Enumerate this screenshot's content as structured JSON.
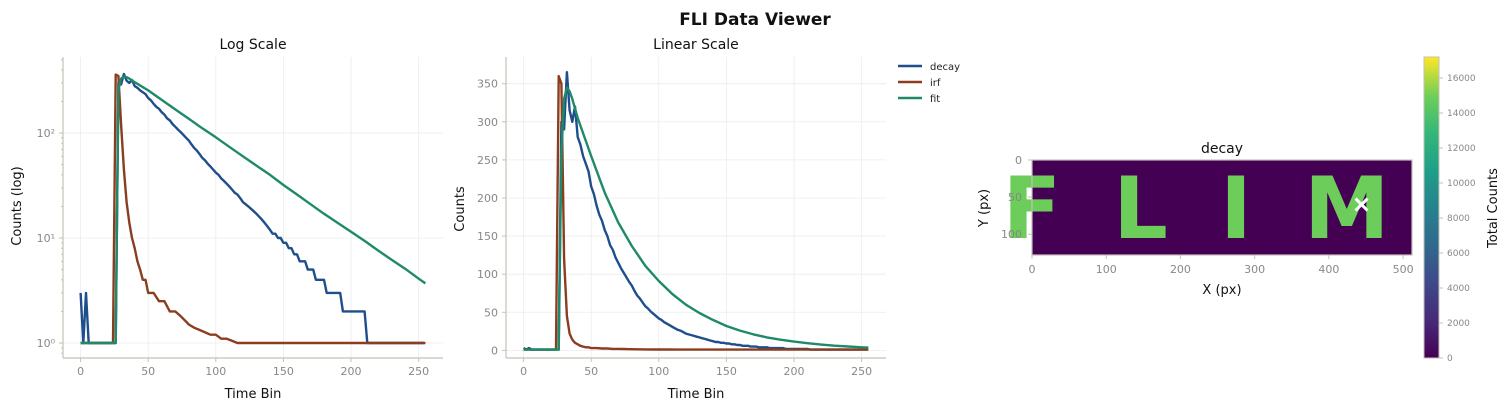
{
  "window": {
    "suptitle": "FLI Data Viewer"
  },
  "colors": {
    "decay": "#1f4e8c",
    "irf": "#8b3e1f",
    "fit": "#1e8a6a",
    "image_bg": "#440154",
    "image_letters": "#6ccd5a",
    "marker": "#ffffff"
  },
  "chart_data": [
    {
      "type": "line",
      "title": "Log Scale",
      "xlabel": "Time Bin",
      "ylabel": "Counts (log)",
      "xlim": [
        -13,
        268
      ],
      "ylim": [
        0.72,
        530
      ],
      "yscale": "log",
      "grid": true,
      "xticks": [
        0,
        50,
        100,
        150,
        200,
        250
      ],
      "yticks": [
        1,
        10,
        100
      ],
      "ytick_labels": [
        "10⁰",
        "10¹",
        "10²"
      ]
    },
    {
      "type": "line",
      "title": "Linear Scale",
      "xlabel": "Time Bin",
      "ylabel": "Counts",
      "xlim": [
        -13,
        268
      ],
      "ylim": [
        -10,
        385
      ],
      "yscale": "linear",
      "grid": true,
      "xticks": [
        0,
        50,
        100,
        150,
        200,
        250
      ],
      "yticks": [
        0,
        50,
        100,
        150,
        200,
        250,
        300,
        350
      ],
      "legend": {
        "placement": "upper-right-outside",
        "entries": [
          "decay",
          "irf",
          "fit"
        ]
      }
    },
    {
      "type": "heatmap",
      "title": "decay",
      "xlabel": "X (px)",
      "ylabel": "Y (px)",
      "xlim": [
        0,
        512
      ],
      "ylim": [
        128,
        0
      ],
      "xticks": [
        0,
        100,
        200,
        300,
        400,
        500
      ],
      "yticks": [
        0,
        50,
        100
      ],
      "image_text": "FLIM",
      "marker": {
        "symbol": "x",
        "x": 444,
        "y": 60
      },
      "colorbar": {
        "label": "Total Counts",
        "min": 0,
        "max": 17200,
        "ticks": [
          0,
          2000,
          4000,
          6000,
          8000,
          10000,
          12000,
          14000,
          16000
        ],
        "colormap": "viridis"
      }
    }
  ],
  "series": {
    "decay": {
      "name": "decay",
      "x": [
        0,
        2,
        4,
        6,
        8,
        10,
        12,
        14,
        16,
        18,
        20,
        22,
        24,
        26,
        28,
        30,
        32,
        34,
        36,
        38,
        40,
        42,
        44,
        46,
        48,
        50,
        52,
        54,
        56,
        58,
        60,
        62,
        64,
        66,
        68,
        70,
        72,
        74,
        76,
        78,
        80,
        82,
        84,
        86,
        88,
        90,
        92,
        94,
        96,
        98,
        100,
        102,
        104,
        106,
        108,
        110,
        112,
        114,
        116,
        118,
        120,
        122,
        124,
        126,
        128,
        130,
        132,
        134,
        136,
        138,
        140,
        142,
        144,
        146,
        148,
        150,
        152,
        154,
        156,
        158,
        160,
        162,
        164,
        166,
        168,
        170,
        172,
        174,
        176,
        178,
        180,
        182,
        184,
        186,
        188,
        190,
        192,
        194,
        196,
        198,
        200,
        202,
        204,
        206,
        208,
        210,
        212,
        214,
        216,
        218,
        220,
        222,
        224,
        226,
        228,
        230,
        232,
        234,
        236,
        238,
        240,
        242,
        244,
        246,
        248,
        250,
        252,
        254
      ],
      "y": [
        3,
        1,
        3,
        1,
        1,
        1,
        1,
        1,
        1,
        1,
        1,
        1,
        1,
        1,
        300,
        290,
        365,
        315,
        300,
        320,
        280,
        270,
        255,
        245,
        235,
        215,
        205,
        190,
        178,
        170,
        158,
        150,
        138,
        132,
        122,
        115,
        108,
        102,
        96,
        90,
        85,
        78,
        72,
        68,
        63,
        58,
        55,
        51,
        48,
        45,
        42,
        40,
        37,
        35,
        33,
        31,
        29,
        27,
        26,
        24,
        22,
        21,
        20,
        19,
        18,
        17,
        16,
        15,
        14,
        13,
        12,
        11,
        11,
        10,
        10,
        9,
        9,
        8,
        8,
        7,
        7,
        6,
        6,
        6,
        5,
        5,
        5,
        4,
        4,
        4,
        4,
        3,
        3,
        3,
        3,
        3,
        3,
        2,
        2,
        2,
        2,
        2,
        2,
        2,
        2,
        2,
        1,
        1,
        1,
        1,
        1,
        1,
        1,
        1,
        1,
        1,
        1,
        1,
        1,
        1,
        1,
        1,
        1,
        1,
        1,
        1,
        1,
        1
      ]
    },
    "irf": {
      "name": "irf",
      "x": [
        0,
        5,
        10,
        15,
        20,
        24,
        26,
        28,
        30,
        32,
        34,
        36,
        38,
        40,
        42,
        44,
        46,
        48,
        50,
        54,
        58,
        62,
        66,
        70,
        74,
        78,
        80,
        84,
        90,
        96,
        100,
        104,
        108,
        112,
        116,
        120,
        126,
        140,
        160,
        180,
        200,
        220,
        240,
        255
      ],
      "y": [
        1,
        1,
        1,
        1,
        1,
        1,
        360,
        350,
        120,
        45,
        22,
        14,
        10,
        8,
        6,
        5,
        4,
        4,
        3,
        3,
        2.5,
        2.5,
        2,
        2,
        1.8,
        1.6,
        1.5,
        1.4,
        1.3,
        1.2,
        1.2,
        1.1,
        1.1,
        1.05,
        1,
        1,
        1,
        1,
        1,
        1,
        1,
        1,
        1,
        1
      ]
    },
    "fit": {
      "name": "fit",
      "x": [
        0,
        5,
        10,
        15,
        20,
        24,
        26,
        28,
        30,
        32,
        34,
        36,
        40,
        50,
        60,
        70,
        80,
        90,
        100,
        110,
        120,
        130,
        140,
        150,
        160,
        170,
        180,
        190,
        200,
        210,
        220,
        230,
        240,
        250,
        255
      ],
      "y": [
        1,
        1,
        1,
        1,
        1,
        1,
        1,
        260,
        330,
        345,
        340,
        330,
        305,
        255,
        207,
        168,
        137,
        111,
        91,
        74,
        60,
        49,
        40,
        32,
        26,
        21,
        17,
        14,
        11.5,
        9.4,
        7.6,
        6.2,
        5.1,
        4.1,
        3.7
      ]
    }
  }
}
